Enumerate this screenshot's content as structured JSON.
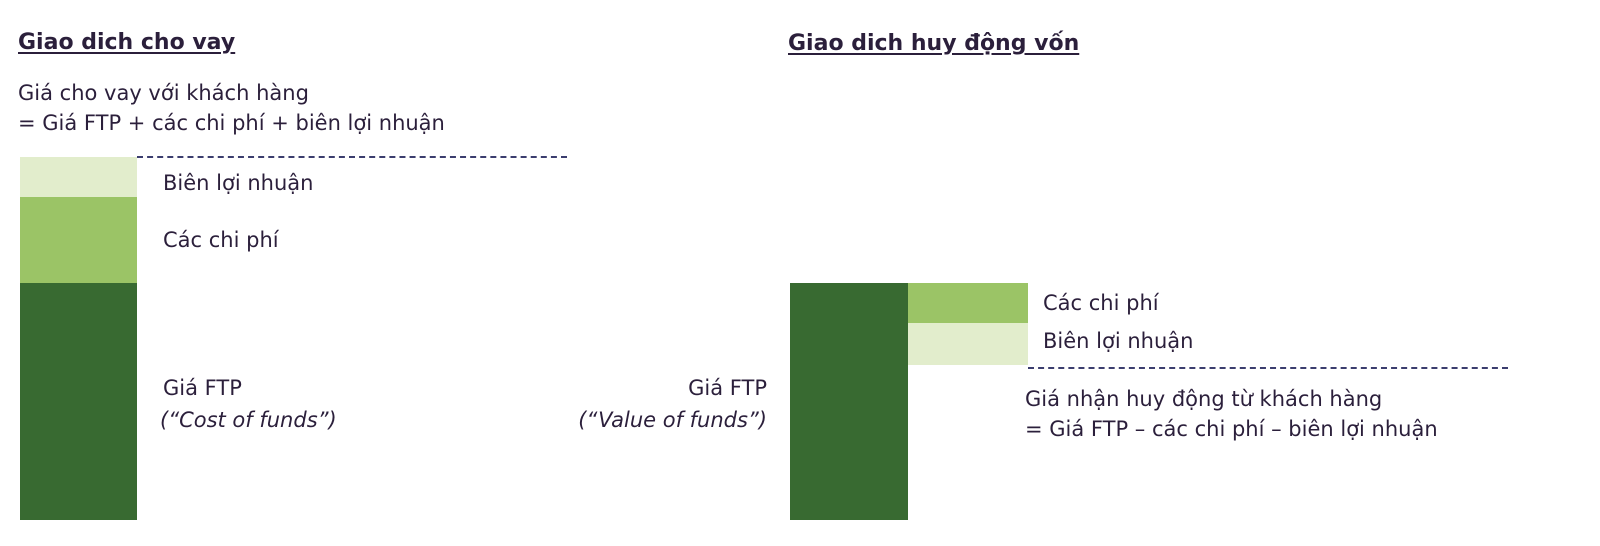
{
  "colors": {
    "ftp": "#386a31",
    "costs": "#9bc466",
    "margin": "#e2edcc",
    "text": "#2b1f3b",
    "dashed_line": "#3b3d6e"
  },
  "lending": {
    "title": "Giao dich cho vay",
    "formula_line1": "Giá cho vay với khách hàng",
    "formula_line2": "= Giá FTP + các chi phí + biên lợi nhuận",
    "margin_label": "Biên lợi nhuận",
    "costs_label": "Các chi phí",
    "ftp_label": "Giá FTP",
    "ftp_sublabel": "(“Cost of funds”)"
  },
  "deposit": {
    "title": "Giao dich huy động vốn",
    "costs_label": "Các chi phí",
    "margin_label": "Biên lợi nhuận",
    "ftp_label": "Giá FTP",
    "ftp_sublabel": "(“Value of funds”)",
    "formula_line1": "Giá nhận huy động từ khách hàng",
    "formula_line2": "= Giá FTP – các chi phí – biên lợi nhuận"
  }
}
